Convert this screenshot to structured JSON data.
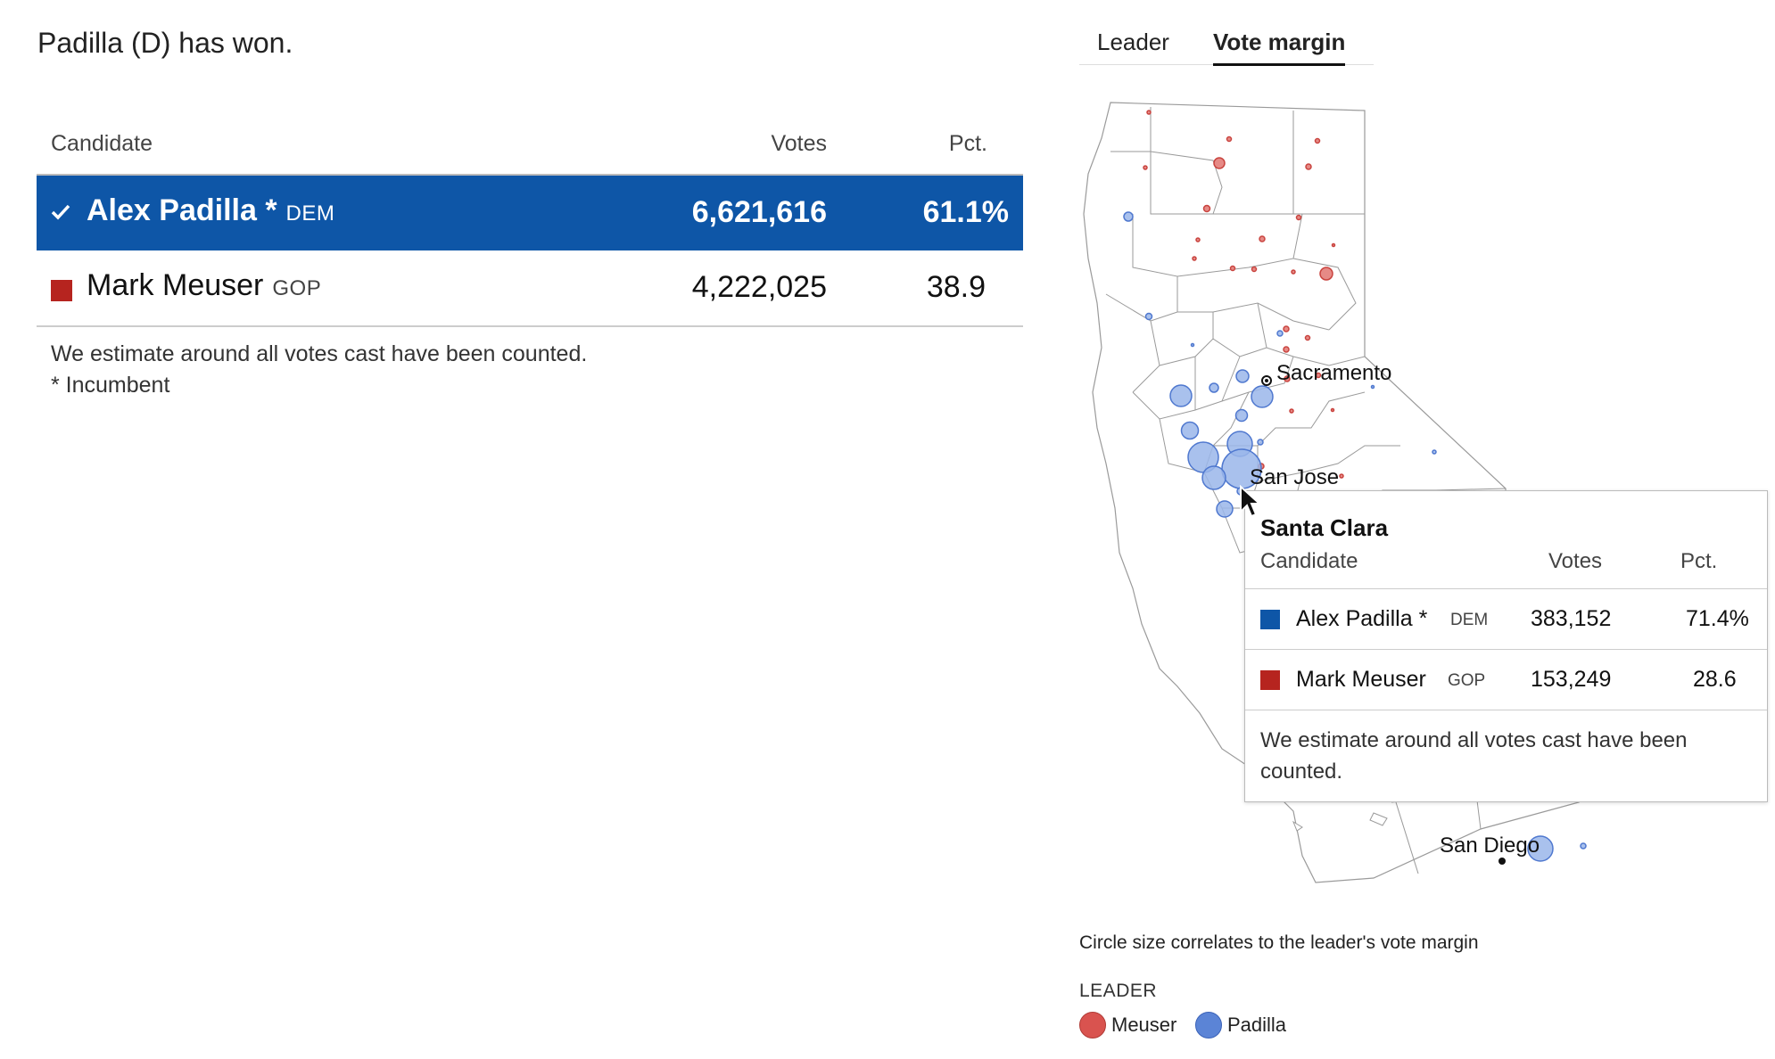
{
  "headline": "Padilla (D) has won.",
  "results": {
    "headers": {
      "candidate": "Candidate",
      "votes": "Votes",
      "pct": "Pct."
    },
    "rows": [
      {
        "name": "Alex Padilla *",
        "party": "DEM",
        "votes": "6,621,616",
        "pct": "61.1%",
        "winner": true,
        "color": "#0e56a7"
      },
      {
        "name": "Mark Meuser",
        "party": "GOP",
        "votes": "4,222,025",
        "pct": "38.9",
        "winner": false,
        "color": "#b6241f"
      }
    ],
    "note": "We estimate around all votes cast have been counted.",
    "footnote": "* Incumbent"
  },
  "tabs": [
    {
      "label": "Leader",
      "active": false
    },
    {
      "label": "Vote margin",
      "active": true
    }
  ],
  "map": {
    "cities": {
      "sacramento": "Sacramento",
      "san_jose": "San Jose",
      "san_diego": "San Diego"
    },
    "colors": {
      "dem": "#5b84d6",
      "gop": "#d9534f"
    }
  },
  "tooltip": {
    "title": "Santa Clara",
    "headers": {
      "candidate": "Candidate",
      "votes": "Votes",
      "pct": "Pct."
    },
    "rows": [
      {
        "name": "Alex Padilla *",
        "party": "DEM",
        "votes": "383,152",
        "pct": "71.4%",
        "color": "#0e56a7"
      },
      {
        "name": "Mark Meuser",
        "party": "GOP",
        "votes": "153,249",
        "pct": "28.6",
        "color": "#b6241f"
      }
    ],
    "note": "We estimate around all votes cast have been counted."
  },
  "caption": "Circle size correlates to the leader's vote margin",
  "legend": {
    "title": "LEADER",
    "items": [
      {
        "label": "Meuser",
        "color": "#d9534f"
      },
      {
        "label": "Padilla",
        "color": "#5b84d6"
      }
    ]
  }
}
